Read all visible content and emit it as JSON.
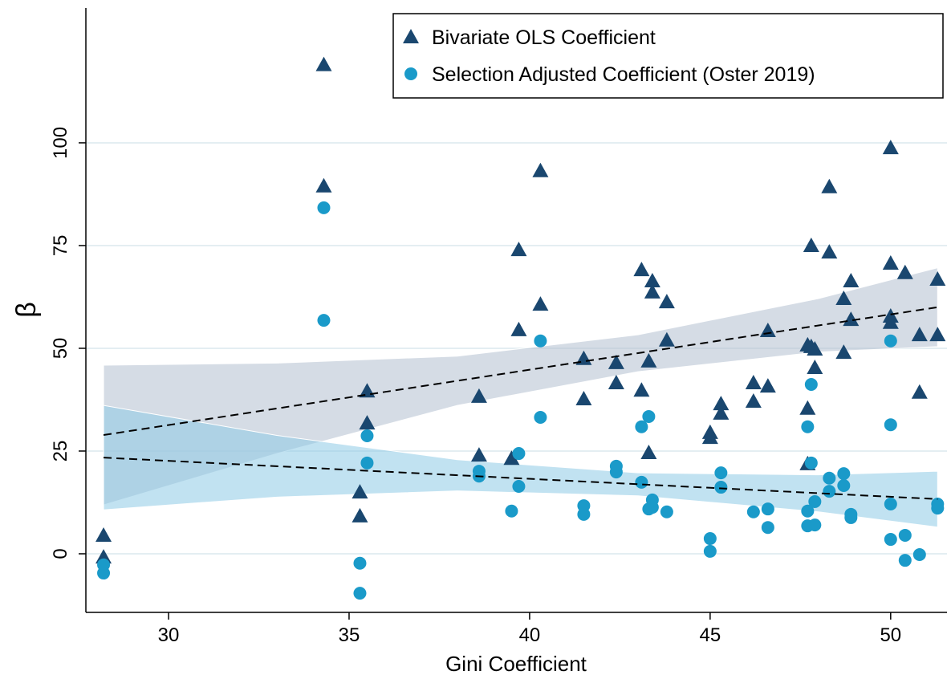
{
  "chart_data": {
    "type": "scatter",
    "xlabel": "Gini Coefficient",
    "ylabel": "β",
    "xlim": [
      27.71,
      51.56
    ],
    "ylim": [
      -14.26,
      132.8
    ],
    "xticks": [
      30,
      35,
      40,
      45,
      50
    ],
    "yticks": [
      0,
      25,
      50,
      75,
      100
    ],
    "grid": true,
    "legend": "top-right",
    "series": [
      {
        "name": "Bivariate OLS Coefficient",
        "color": "#1a476f",
        "marker": "triangle",
        "x": [
          28.2,
          28.2,
          34.3,
          34.3,
          35.3,
          35.3,
          35.5,
          35.5,
          38.6,
          38.6,
          39.5,
          39.7,
          39.7,
          40.3,
          40.3,
          41.5,
          41.5,
          42.4,
          42.4,
          43.1,
          43.1,
          43.3,
          43.3,
          43.4,
          43.4,
          43.8,
          43.8,
          45,
          45,
          45.3,
          45.3,
          46.2,
          46.2,
          46.6,
          46.6,
          47.7,
          47.7,
          47.7,
          47.8,
          47.8,
          47.9,
          47.9,
          48.3,
          48.3,
          48.7,
          48.7,
          48.9,
          48.9,
          50,
          50,
          50,
          50,
          50.4,
          50.8,
          50.8,
          51.3,
          51.3
        ],
        "values": [
          4.5,
          -0.8,
          119,
          89.5,
          9.2,
          15,
          39.6,
          31.8,
          24,
          38.3,
          23.2,
          74,
          54.5,
          93.2,
          60.7,
          47.5,
          37.7,
          46.5,
          41.6,
          69.1,
          39.8,
          24.6,
          46.9,
          66.4,
          63.7,
          61.3,
          52,
          29.5,
          28.3,
          36.5,
          34.2,
          41.6,
          37.1,
          54.3,
          40.8,
          35.4,
          50.8,
          21.9,
          75,
          50.4,
          49.8,
          45.3,
          89.3,
          73.4,
          62.1,
          49,
          66.4,
          57,
          98.8,
          70.7,
          57.8,
          56.3,
          68.4,
          53.3,
          39.3,
          66.8,
          53.3
        ],
        "fit": {
          "x": [
            28.2,
            51.3
          ],
          "values": [
            28.9,
            60
          ]
        },
        "band": {
          "color": "#b3bfd0",
          "x": [
            28.2,
            33,
            38,
            43,
            48,
            51.3
          ],
          "lower": [
            11.9,
            24.4,
            36.1,
            44.3,
            49.1,
            50.4
          ],
          "upper": [
            45.9,
            46.4,
            48.1,
            53.3,
            62.1,
            69.6
          ]
        }
      },
      {
        "name": "Selection Adjusted Coefficient (Oster 2019)",
        "color": "#1a9ac9",
        "marker": "circle",
        "x": [
          28.2,
          28.2,
          34.3,
          34.3,
          35.3,
          35.3,
          35.5,
          35.5,
          38.6,
          38.6,
          39.5,
          39.7,
          39.7,
          40.3,
          40.3,
          41.5,
          41.5,
          42.4,
          42.4,
          43.1,
          43.1,
          43.3,
          43.3,
          43.4,
          43.4,
          43.8,
          45,
          45,
          45.3,
          45.3,
          46.2,
          46.6,
          46.6,
          47.7,
          47.7,
          47.7,
          47.8,
          47.8,
          47.9,
          47.9,
          48.3,
          48.3,
          48.7,
          48.7,
          48.9,
          48.9,
          50,
          50,
          50,
          50,
          50.4,
          50.4,
          50.8,
          51.3,
          51.3
        ],
        "values": [
          -2.7,
          -4.7,
          84.2,
          56.8,
          -2.3,
          -9.6,
          28.7,
          22.1,
          20.1,
          18.9,
          10.4,
          24.4,
          16.4,
          51.8,
          33.2,
          11.7,
          9.6,
          21.3,
          19.9,
          30.9,
          17.4,
          33.4,
          10.9,
          13.1,
          11.3,
          10.2,
          3.7,
          0.6,
          19.7,
          16.2,
          10.2,
          10.9,
          6.4,
          30.9,
          10.4,
          6.8,
          41.2,
          22.1,
          12.7,
          7,
          18.4,
          15.2,
          19.5,
          16.6,
          9.6,
          8.8,
          51.8,
          31.4,
          12.1,
          3.5,
          4.5,
          -1.6,
          -0.2,
          12.1,
          11.1
        ],
        "fit": {
          "x": [
            28.2,
            51.3
          ],
          "values": [
            23.4,
            13.3
          ]
        },
        "band": {
          "color": "#8ecae6",
          "x": [
            28.2,
            33,
            38,
            43,
            48,
            51.3
          ],
          "lower": [
            10.7,
            13.8,
            15.3,
            14.1,
            10.2,
            6.5
          ],
          "upper": [
            36.1,
            28.8,
            22.9,
            19.7,
            19.2,
            20.1
          ]
        }
      }
    ]
  }
}
